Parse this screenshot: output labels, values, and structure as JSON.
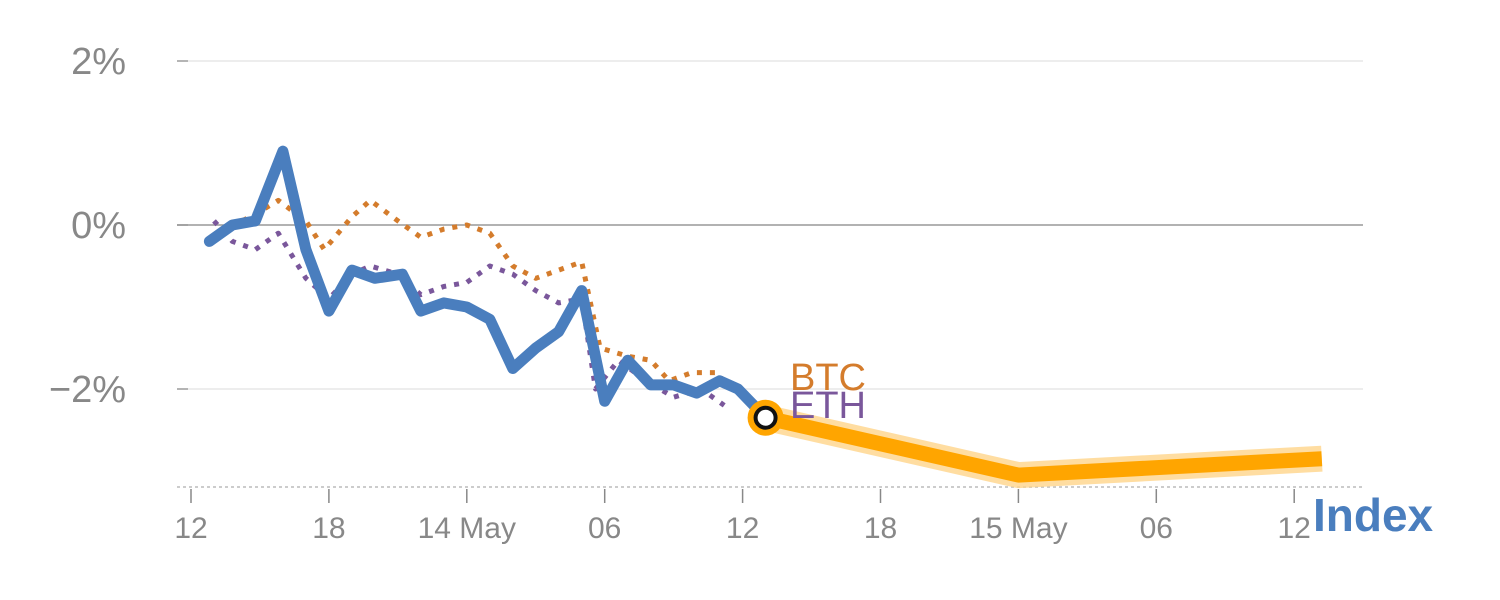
{
  "chart_data": {
    "type": "line",
    "y_unit": "%",
    "ylim": [
      -3.2,
      2.0
    ],
    "y_ticks": [
      {
        "value": 2,
        "label": "2%"
      },
      {
        "value": 0,
        "label": "0%"
      },
      {
        "value": -2,
        "label": "−2%"
      }
    ],
    "x_range": [
      0,
      24
    ],
    "x_ticks": [
      {
        "x": 0,
        "label": "12"
      },
      {
        "x": 3,
        "label": "18"
      },
      {
        "x": 6,
        "label": "14 May"
      },
      {
        "x": 9,
        "label": "06"
      },
      {
        "x": 12,
        "label": "12"
      },
      {
        "x": 15,
        "label": "18"
      },
      {
        "x": 18,
        "label": "15 May"
      },
      {
        "x": 21,
        "label": "06"
      },
      {
        "x": 24,
        "label": "12"
      }
    ],
    "grid": true,
    "series": [
      {
        "name": "BTC",
        "color": "#d47c2c",
        "style": "dotted",
        "points": [
          [
            0.4,
            -0.2
          ],
          [
            0.9,
            0.0
          ],
          [
            1.3,
            0.1
          ],
          [
            1.9,
            0.3
          ],
          [
            2.5,
            0.05
          ],
          [
            2.9,
            -0.3
          ],
          [
            3.5,
            0.1
          ],
          [
            3.9,
            0.3
          ],
          [
            4.5,
            0.05
          ],
          [
            5.0,
            -0.15
          ],
          [
            5.5,
            -0.05
          ],
          [
            6.0,
            0.0
          ],
          [
            6.5,
            -0.1
          ],
          [
            7.0,
            -0.5
          ],
          [
            7.5,
            -0.65
          ],
          [
            8.0,
            -0.55
          ],
          [
            8.5,
            -0.45
          ],
          [
            8.9,
            -1.5
          ],
          [
            9.5,
            -1.6
          ],
          [
            10.0,
            -1.65
          ],
          [
            10.4,
            -1.9
          ],
          [
            10.9,
            -1.8
          ],
          [
            11.4,
            -1.8
          ],
          [
            11.9,
            -2.05
          ]
        ]
      },
      {
        "name": "ETH",
        "color": "#7a579b",
        "style": "dotted",
        "points": [
          [
            0.5,
            0.05
          ],
          [
            0.9,
            -0.2
          ],
          [
            1.4,
            -0.3
          ],
          [
            1.9,
            -0.1
          ],
          [
            2.5,
            -0.65
          ],
          [
            3.0,
            -0.9
          ],
          [
            3.5,
            -0.6
          ],
          [
            3.9,
            -0.5
          ],
          [
            4.5,
            -0.6
          ],
          [
            5.0,
            -0.85
          ],
          [
            5.5,
            -0.75
          ],
          [
            6.0,
            -0.7
          ],
          [
            6.5,
            -0.5
          ],
          [
            7.0,
            -0.6
          ],
          [
            7.5,
            -0.8
          ],
          [
            8.0,
            -0.95
          ],
          [
            8.5,
            -0.9
          ],
          [
            8.8,
            -2.0
          ],
          [
            9.3,
            -1.65
          ],
          [
            9.9,
            -1.9
          ],
          [
            10.5,
            -2.1
          ],
          [
            11.1,
            -2.0
          ],
          [
            11.6,
            -2.2
          ]
        ]
      },
      {
        "name": "Index",
        "color": "#4a7ebe",
        "style": "solid",
        "points": [
          [
            0.4,
            -0.2
          ],
          [
            0.9,
            0.0
          ],
          [
            1.4,
            0.05
          ],
          [
            2.0,
            0.9
          ],
          [
            2.5,
            -0.3
          ],
          [
            3.0,
            -1.05
          ],
          [
            3.5,
            -0.55
          ],
          [
            4.0,
            -0.65
          ],
          [
            4.6,
            -0.6
          ],
          [
            5.0,
            -1.05
          ],
          [
            5.5,
            -0.95
          ],
          [
            6.0,
            -1.0
          ],
          [
            6.5,
            -1.15
          ],
          [
            7.0,
            -1.75
          ],
          [
            7.5,
            -1.5
          ],
          [
            8.0,
            -1.3
          ],
          [
            8.5,
            -0.8
          ],
          [
            9.0,
            -2.15
          ],
          [
            9.5,
            -1.65
          ],
          [
            10.0,
            -1.95
          ],
          [
            10.5,
            -1.95
          ],
          [
            11.0,
            -2.05
          ],
          [
            11.5,
            -1.9
          ],
          [
            11.9,
            -2.0
          ],
          [
            12.5,
            -2.35
          ]
        ]
      }
    ],
    "forecast": {
      "color": "#ffa500",
      "points": [
        [
          12.5,
          -2.35
        ],
        [
          18.0,
          -3.05
        ],
        [
          24.6,
          -2.85
        ]
      ]
    },
    "marker": {
      "x": 12.5,
      "y": -2.35
    },
    "labels": {
      "btc": "BTC",
      "eth": "ETH",
      "index": "Index"
    }
  }
}
